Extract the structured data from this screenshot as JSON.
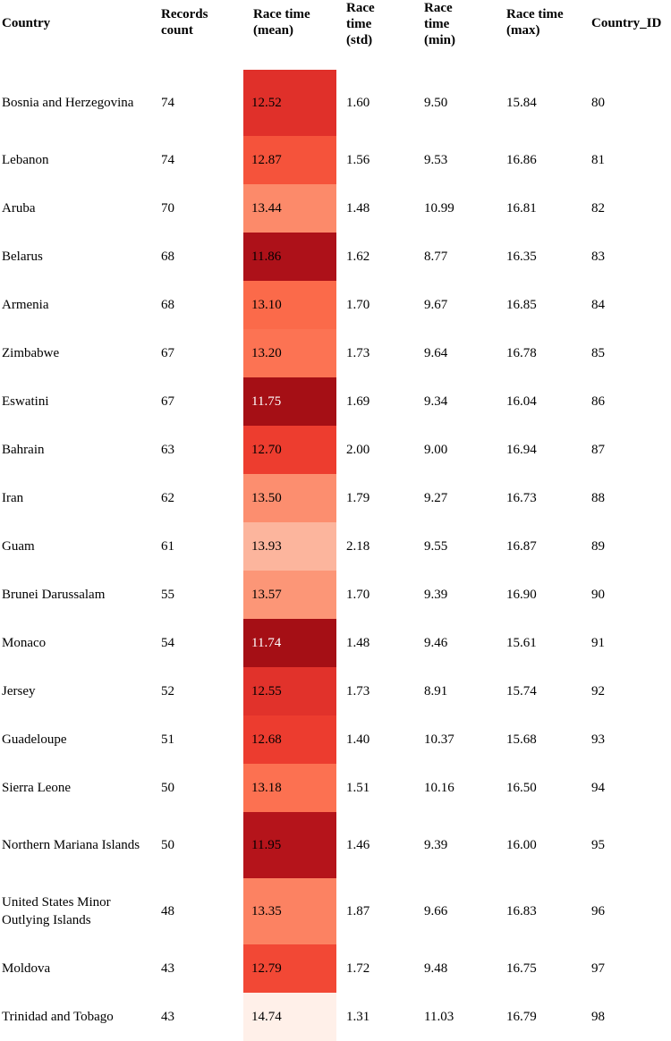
{
  "table": {
    "headers": {
      "country": "Country",
      "records_count": "Records count",
      "mean": "Race time (mean)",
      "std": "Race time (std)",
      "min": "Race time (min)",
      "max": "Race time (max)",
      "country_id": "Country_ID"
    },
    "rows": [
      {
        "country": "Bosnia and Herzegovina",
        "records": "74",
        "mean": "12.52",
        "std": "1.60",
        "min": "9.50",
        "max": "15.84",
        "id": "80",
        "mean_bg": "#e0302a",
        "mean_fg": "#000000"
      },
      {
        "country": "Lebanon",
        "records": "74",
        "mean": "12.87",
        "std": "1.56",
        "min": "9.53",
        "max": "16.86",
        "id": "81",
        "mean_bg": "#f5533b",
        "mean_fg": "#000000"
      },
      {
        "country": "Aruba",
        "records": "70",
        "mean": "13.44",
        "std": "1.48",
        "min": "10.99",
        "max": "16.81",
        "id": "82",
        "mean_bg": "#fc8a6a",
        "mean_fg": "#000000"
      },
      {
        "country": "Belarus",
        "records": "68",
        "mean": "11.86",
        "std": "1.62",
        "min": "8.77",
        "max": "16.35",
        "id": "83",
        "mean_bg": "#ad1119",
        "mean_fg": "#000000"
      },
      {
        "country": "Armenia",
        "records": "68",
        "mean": "13.10",
        "std": "1.70",
        "min": "9.67",
        "max": "16.85",
        "id": "84",
        "mean_bg": "#fb6a4a",
        "mean_fg": "#000000"
      },
      {
        "country": "Zimbabwe",
        "records": "67",
        "mean": "13.20",
        "std": "1.73",
        "min": "9.64",
        "max": "16.78",
        "id": "85",
        "mean_bg": "#fc7353",
        "mean_fg": "#000000"
      },
      {
        "country": "Eswatini",
        "records": "67",
        "mean": "11.75",
        "std": "1.69",
        "min": "9.34",
        "max": "16.04",
        "id": "86",
        "mean_bg": "#a50f15",
        "mean_fg": "#ffffff"
      },
      {
        "country": "Bahrain",
        "records": "63",
        "mean": "12.70",
        "std": "2.00",
        "min": "9.00",
        "max": "16.94",
        "id": "87",
        "mean_bg": "#ed3d2f",
        "mean_fg": "#000000"
      },
      {
        "country": "Iran",
        "records": "62",
        "mean": "13.50",
        "std": "1.79",
        "min": "9.27",
        "max": "16.73",
        "id": "88",
        "mean_bg": "#fc8e6f",
        "mean_fg": "#000000"
      },
      {
        "country": "Guam",
        "records": "61",
        "mean": "13.93",
        "std": "2.18",
        "min": "9.55",
        "max": "16.87",
        "id": "89",
        "mean_bg": "#fcb59d",
        "mean_fg": "#000000"
      },
      {
        "country": "Brunei Darussalam",
        "records": "55",
        "mean": "13.57",
        "std": "1.70",
        "min": "9.39",
        "max": "16.90",
        "id": "90",
        "mean_bg": "#fc9677",
        "mean_fg": "#000000"
      },
      {
        "country": "Monaco",
        "records": "54",
        "mean": "11.74",
        "std": "1.48",
        "min": "9.46",
        "max": "15.61",
        "id": "91",
        "mean_bg": "#a50f15",
        "mean_fg": "#ffffff"
      },
      {
        "country": "Jersey",
        "records": "52",
        "mean": "12.55",
        "std": "1.73",
        "min": "8.91",
        "max": "15.74",
        "id": "92",
        "mean_bg": "#e1322b",
        "mean_fg": "#000000"
      },
      {
        "country": "Guadeloupe",
        "records": "51",
        "mean": "12.68",
        "std": "1.40",
        "min": "10.37",
        "max": "15.68",
        "id": "93",
        "mean_bg": "#ec3c2f",
        "mean_fg": "#000000"
      },
      {
        "country": "Sierra Leone",
        "records": "50",
        "mean": "13.18",
        "std": "1.51",
        "min": "10.16",
        "max": "16.50",
        "id": "94",
        "mean_bg": "#fc7151",
        "mean_fg": "#000000"
      },
      {
        "country": "Northern Mariana Islands",
        "records": "50",
        "mean": "11.95",
        "std": "1.46",
        "min": "9.39",
        "max": "16.00",
        "id": "95",
        "mean_bg": "#b5141b",
        "mean_fg": "#000000"
      },
      {
        "country": "United States Minor Outlying Islands",
        "records": "48",
        "mean": "13.35",
        "std": "1.87",
        "min": "9.66",
        "max": "16.83",
        "id": "96",
        "mean_bg": "#fc8262",
        "mean_fg": "#000000"
      },
      {
        "country": "Moldova",
        "records": "43",
        "mean": "12.79",
        "std": "1.72",
        "min": "9.48",
        "max": "16.75",
        "id": "97",
        "mean_bg": "#f24835",
        "mean_fg": "#000000"
      },
      {
        "country": "Trinidad and Tobago",
        "records": "43",
        "mean": "14.74",
        "std": "1.31",
        "min": "11.03",
        "max": "16.79",
        "id": "98",
        "mean_bg": "#fff0e9",
        "mean_fg": "#000000"
      }
    ]
  }
}
